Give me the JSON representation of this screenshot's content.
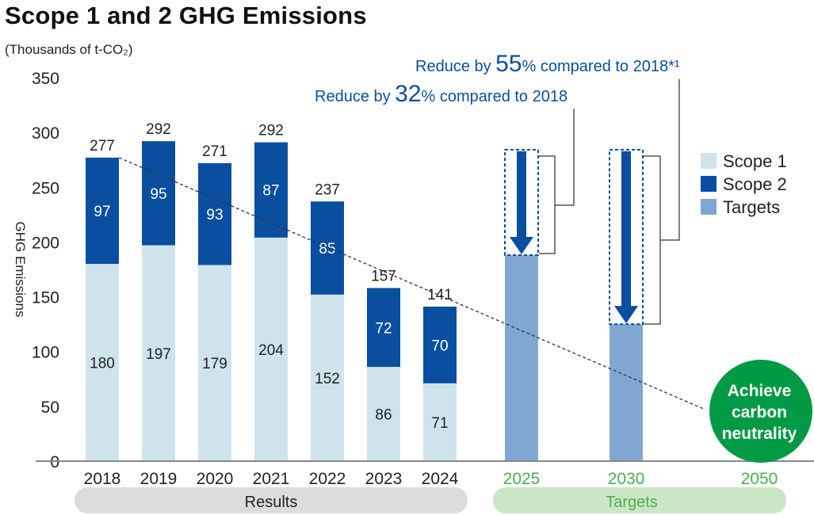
{
  "title": "Scope 1 and 2 GHG Emissions",
  "unit_label": "(Thousands of t-CO₂)",
  "chart_data": {
    "type": "bar",
    "stacked": true,
    "title": "Scope 1 and 2 GHG Emissions",
    "ylabel": "GHG Emissions",
    "unit": "Thousands of t-CO2",
    "ylim": [
      0,
      350
    ],
    "yticks": [
      0,
      50,
      100,
      150,
      200,
      250,
      300,
      350
    ],
    "categories": [
      "2018",
      "2019",
      "2020",
      "2021",
      "2022",
      "2023",
      "2024",
      "2025",
      "2030",
      "2050"
    ],
    "series": [
      {
        "name": "Scope 1",
        "color": "#cfe3ec",
        "values": [
          180,
          197,
          179,
          204,
          152,
          86,
          71,
          null,
          null,
          null
        ]
      },
      {
        "name": "Scope 2",
        "color": "#0a4ea0",
        "values": [
          97,
          95,
          93,
          87,
          85,
          72,
          70,
          null,
          null,
          null
        ]
      },
      {
        "name": "Targets",
        "color": "#80a7d2",
        "values": [
          null,
          null,
          null,
          null,
          null,
          null,
          null,
          188,
          125,
          0
        ]
      }
    ],
    "totals": [
      277,
      292,
      271,
      292,
      237,
      157,
      141,
      null,
      null,
      null
    ],
    "legend": [
      "Scope 1",
      "Scope 2",
      "Targets"
    ],
    "legend_position": "right",
    "trend_line": "dashed line from 2018 total to 2050 (zero)",
    "annotations": [
      {
        "target": "2025",
        "text_prefix": "Reduce by ",
        "percent": "32",
        "text_suffix": "% compared to 2018",
        "baseline": 277
      },
      {
        "target": "2030",
        "text_prefix": "Reduce by ",
        "percent": "55",
        "text_suffix": "% compared to 2018*1",
        "baseline": 277
      },
      {
        "target": "2050",
        "text": "Achieve carbon neutrality"
      }
    ],
    "groups": [
      {
        "label": "Results",
        "categories": [
          "2018",
          "2019",
          "2020",
          "2021",
          "2022",
          "2023",
          "2024"
        ]
      },
      {
        "label": "Targets",
        "categories": [
          "2025",
          "2030",
          "2050"
        ]
      }
    ]
  },
  "legend": {
    "scope1": "Scope 1",
    "scope2": "Scope 2",
    "targets": "Targets"
  },
  "annotations": {
    "a2030": {
      "prefix": "Reduce by ",
      "num": "55",
      "suffix": "% compared to 2018*¹"
    },
    "a2025": {
      "prefix": "Reduce by ",
      "num": "32",
      "suffix": "% compared to 2018"
    },
    "neutral": [
      "Achieve",
      "carbon",
      "neutrality"
    ]
  },
  "groups": {
    "results": "Results",
    "targets": "Targets"
  },
  "colors": {
    "scope1": "#cfe3ec",
    "scope2": "#0a4ea0",
    "targets": "#80a7d2",
    "green": "#009a44",
    "year_green": "#4caf50"
  }
}
